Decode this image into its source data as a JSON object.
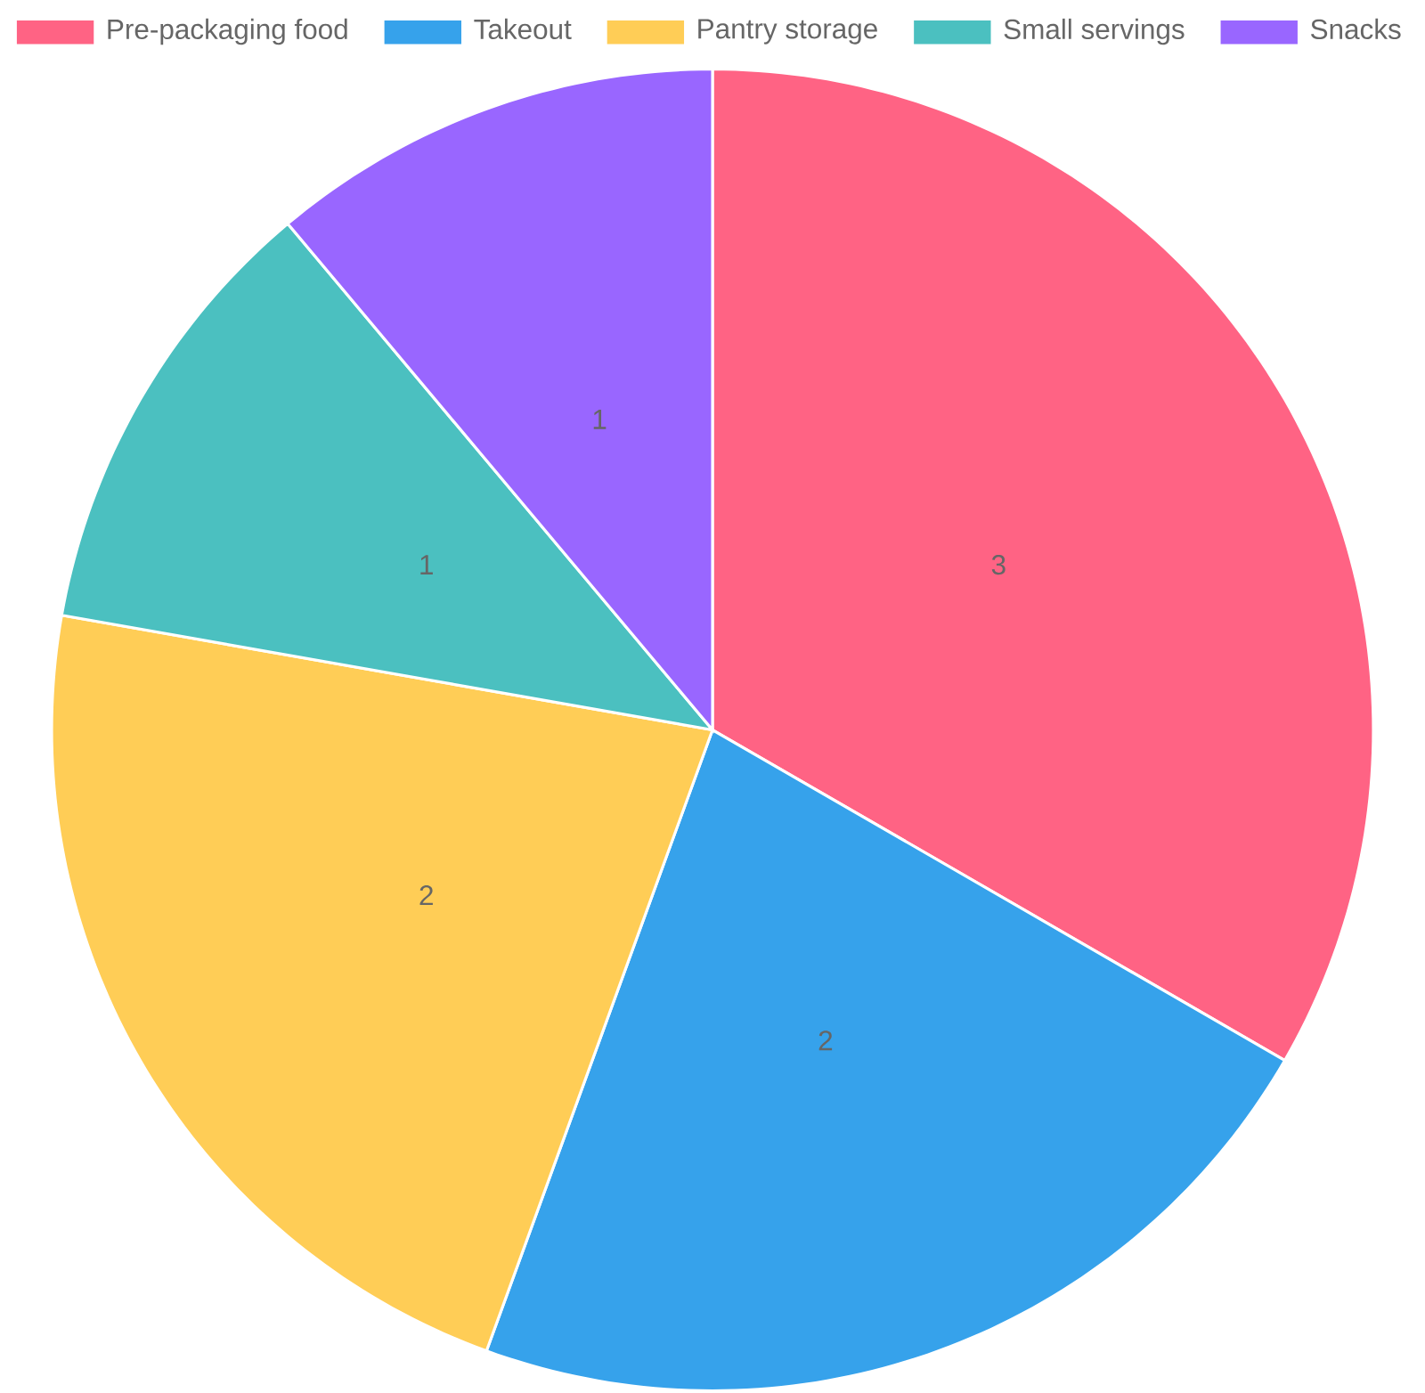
{
  "chart_data": {
    "type": "pie",
    "categories": [
      "Pre-packaging food",
      "Takeout",
      "Pantry storage",
      "Small servings",
      "Snacks"
    ],
    "values": [
      3,
      2,
      2,
      1,
      1
    ],
    "colors": [
      "#ff6384",
      "#36a2eb",
      "#ffcd56",
      "#4bc0c0",
      "#9966ff"
    ],
    "data_labels": true,
    "legend": "top"
  }
}
